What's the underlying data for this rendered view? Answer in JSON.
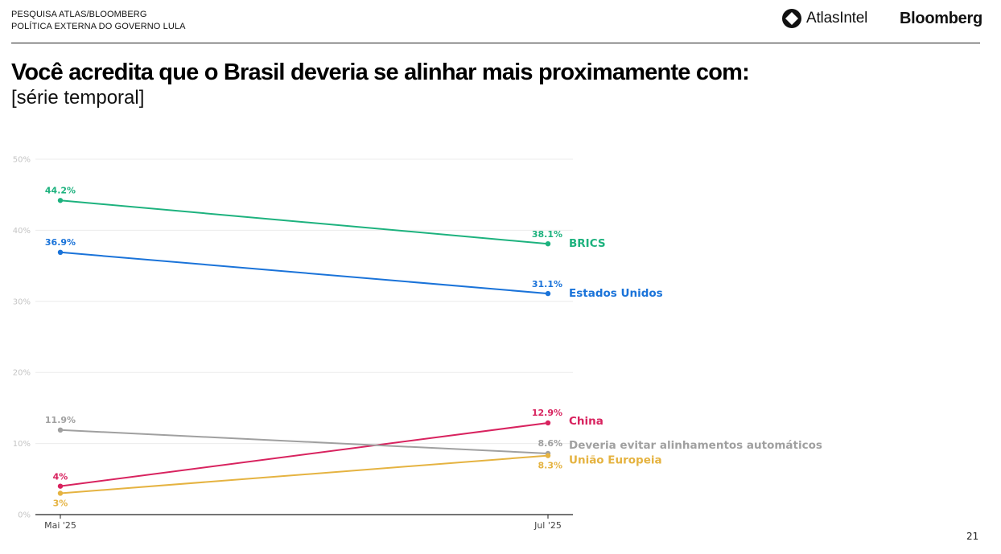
{
  "header": {
    "line1": "PESQUISA ATLAS/BLOOMBERG",
    "line2": "POLÍTICA EXTERNA DO GOVERNO LULA",
    "logo_atlas": "AtlasIntel",
    "logo_bloomberg": "Bloomberg"
  },
  "title": "Você acredita que o Brasil deveria se alinhar mais proximamente com:",
  "subtitle": "[série temporal]",
  "page_number": "21",
  "chart_data": {
    "type": "line",
    "title": "Você acredita que o Brasil deveria se alinhar mais proximamente com:",
    "subtitle": "[série temporal]",
    "xlabel": "",
    "ylabel": "",
    "x": [
      "Mai '25",
      "Jul '25"
    ],
    "ylim": [
      0,
      50
    ],
    "yticks": [
      0,
      10,
      20,
      30,
      40,
      50
    ],
    "ytick_labels": [
      "0%",
      "10%",
      "20%",
      "30%",
      "40%",
      "50%"
    ],
    "grid": true,
    "legend": "direct-labels-right",
    "series": [
      {
        "name": "BRICS",
        "color": "#1db27e",
        "values": [
          44.2,
          38.1
        ],
        "labels": [
          "44.2%",
          "38.1%"
        ]
      },
      {
        "name": "Estados Unidos",
        "color": "#1a73d9",
        "values": [
          36.9,
          31.1
        ],
        "labels": [
          "36.9%",
          "31.1%"
        ]
      },
      {
        "name": "China",
        "color": "#d8235f",
        "values": [
          4,
          12.9
        ],
        "labels": [
          "4%",
          "12.9%"
        ]
      },
      {
        "name": "Deveria evitar alinhamentos automáticos",
        "color": "#a0a0a0",
        "values": [
          11.9,
          8.6
        ],
        "labels": [
          "11.9%",
          "8.6%"
        ]
      },
      {
        "name": "União Europeia",
        "color": "#e5b341",
        "values": [
          3,
          8.3
        ],
        "labels": [
          "3%",
          "8.3%"
        ]
      }
    ]
  }
}
